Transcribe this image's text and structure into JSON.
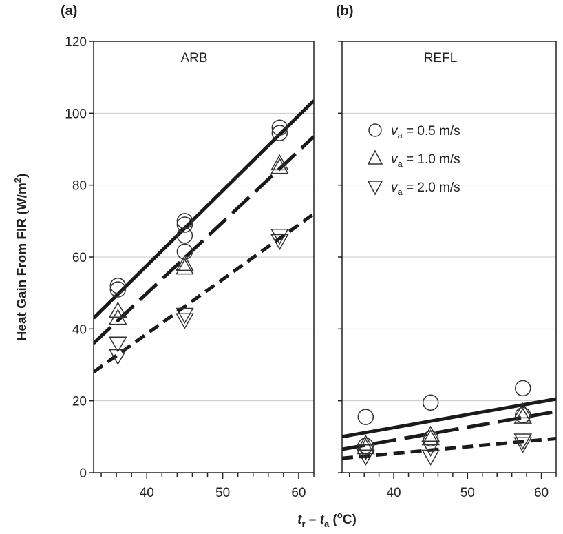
{
  "figure": {
    "ylabel": "Heat Gain From FIR (W/m",
    "ylabel_sup": "2",
    "ylabel_end": ")",
    "xlabel_t": "t",
    "xlabel_r": "r",
    "xlabel_mid": " – ",
    "xlabel_t2": "t",
    "xlabel_a": "a",
    "xlabel_unit_open": " (",
    "xlabel_unit_sup": "o",
    "xlabel_unit_close": "C)"
  },
  "legend": [
    {
      "marker": "circle",
      "var": "v",
      "sub": "a",
      "text": " = 0.5 m/s"
    },
    {
      "marker": "triangle-up",
      "var": "v",
      "sub": "a",
      "text": " = 1.0 m/s"
    },
    {
      "marker": "triangle-down",
      "var": "v",
      "sub": "a",
      "text": " = 2.0 m/s"
    }
  ],
  "chart_data": [
    {
      "type": "scatter",
      "panel": "(a)",
      "title": "ARB",
      "xlim": [
        33,
        62
      ],
      "ylim": [
        0,
        120
      ],
      "xticks": [
        40,
        50,
        60
      ],
      "yticks": [
        0,
        20,
        40,
        60,
        80,
        100,
        120
      ],
      "grid": "horizontal",
      "series": [
        {
          "name": "v_a = 0.5 m/s",
          "marker": "circle",
          "points": [
            [
              36.2,
              52
            ],
            [
              36.2,
              51
            ],
            [
              45,
              70
            ],
            [
              45,
              69
            ],
            [
              45,
              66
            ],
            [
              45,
              61.5
            ],
            [
              57.5,
              96
            ],
            [
              57.5,
              94.5
            ]
          ],
          "fit": {
            "style": "solid",
            "x": [
              33,
              62
            ],
            "y": [
              43,
              103.5
            ]
          }
        },
        {
          "name": "v_a = 1.0 m/s",
          "marker": "triangle-up",
          "points": [
            [
              36.2,
              45
            ],
            [
              36.2,
              43
            ],
            [
              45,
              58
            ],
            [
              45,
              57
            ],
            [
              57.5,
              86
            ],
            [
              57.5,
              85
            ]
          ],
          "fit": {
            "style": "long-dash",
            "x": [
              33,
              62
            ],
            "y": [
              36,
              93.5
            ]
          }
        },
        {
          "name": "v_a = 2.0 m/s",
          "marker": "triangle-down",
          "points": [
            [
              36.2,
              36
            ],
            [
              36.2,
              32.5
            ],
            [
              45,
              44
            ],
            [
              45,
              42.5
            ],
            [
              57.5,
              66
            ],
            [
              57.5,
              64.5
            ]
          ],
          "fit": {
            "style": "short-dash",
            "x": [
              33,
              62
            ],
            "y": [
              28,
              72
            ]
          }
        }
      ]
    },
    {
      "type": "scatter",
      "panel": "(b)",
      "title": "REFL",
      "xlim": [
        33,
        62
      ],
      "ylim": [
        0,
        120
      ],
      "xticks": [
        40,
        50,
        60
      ],
      "yticks": [
        0,
        20,
        40,
        60,
        80,
        100,
        120
      ],
      "grid": "horizontal",
      "series": [
        {
          "name": "v_a = 0.5 m/s",
          "marker": "circle",
          "points": [
            [
              36.2,
              15.5
            ],
            [
              36.2,
              7.5
            ],
            [
              45,
              19.5
            ],
            [
              45,
              9.5
            ],
            [
              57.5,
              23.5
            ],
            [
              57.5,
              16
            ]
          ],
          "fit": {
            "style": "solid",
            "x": [
              33,
              62
            ],
            "y": [
              10,
              20.5
            ]
          }
        },
        {
          "name": "v_a = 1.0 m/s",
          "marker": "triangle-up",
          "points": [
            [
              36.2,
              8
            ],
            [
              36.2,
              7
            ],
            [
              45,
              10.5
            ],
            [
              45,
              9.5
            ],
            [
              57.5,
              17
            ],
            [
              57.5,
              15.5
            ]
          ],
          "fit": {
            "style": "long-dash",
            "x": [
              33,
              62
            ],
            "y": [
              6.5,
              17
            ]
          }
        },
        {
          "name": "v_a = 2.0 m/s",
          "marker": "triangle-down",
          "points": [
            [
              36.2,
              6
            ],
            [
              36.2,
              4.5
            ],
            [
              45,
              7
            ],
            [
              45,
              4.5
            ],
            [
              57.5,
              9
            ],
            [
              57.5,
              8
            ]
          ],
          "fit": {
            "style": "short-dash",
            "x": [
              33,
              62
            ],
            "y": [
              4,
              9.5
            ]
          }
        }
      ]
    }
  ]
}
